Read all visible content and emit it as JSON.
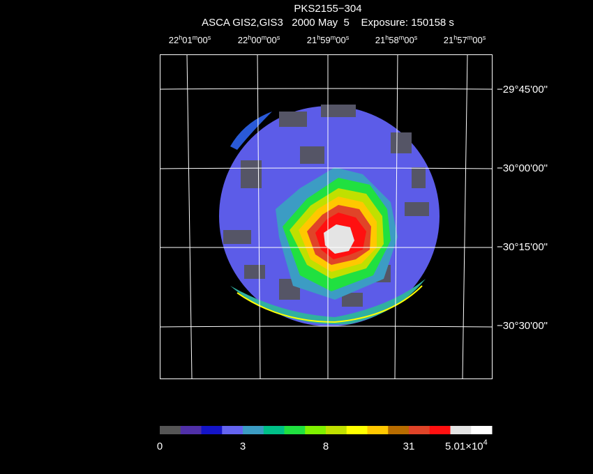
{
  "header": {
    "title": "PKS2155−304",
    "subtitle": "ASCA GIS2,GIS3   2000 May  5    Exposure: 150158 s"
  },
  "ra_labels": [
    [
      "22",
      "h",
      "01",
      "m",
      "00",
      "s"
    ],
    [
      "22",
      "h",
      "00",
      "m",
      "00",
      "s"
    ],
    [
      "21",
      "h",
      "59",
      "m",
      "00",
      "s"
    ],
    [
      "21",
      "h",
      "58",
      "m",
      "00",
      "s"
    ],
    [
      "21",
      "h",
      "57",
      "m",
      "00",
      "s"
    ]
  ],
  "dec_labels": [
    "−29°45'00\"",
    "−30°00'00\"",
    "−30°15'00\"",
    "−30°30'00\""
  ],
  "colorbar": {
    "colors": [
      "#555555",
      "#5030a8",
      "#1414c8",
      "#6464f0",
      "#3c9cc4",
      "#00c088",
      "#20e040",
      "#80f000",
      "#c0e000",
      "#ffff00",
      "#ffc800",
      "#b86c00",
      "#e04428",
      "#ff1010",
      "#e4e4e4",
      "#ffffff"
    ],
    "labels": [
      "0",
      "3",
      "8",
      "31"
    ],
    "max_label": {
      "mantissa": "5.01×10",
      "exponent": "4"
    }
  }
}
